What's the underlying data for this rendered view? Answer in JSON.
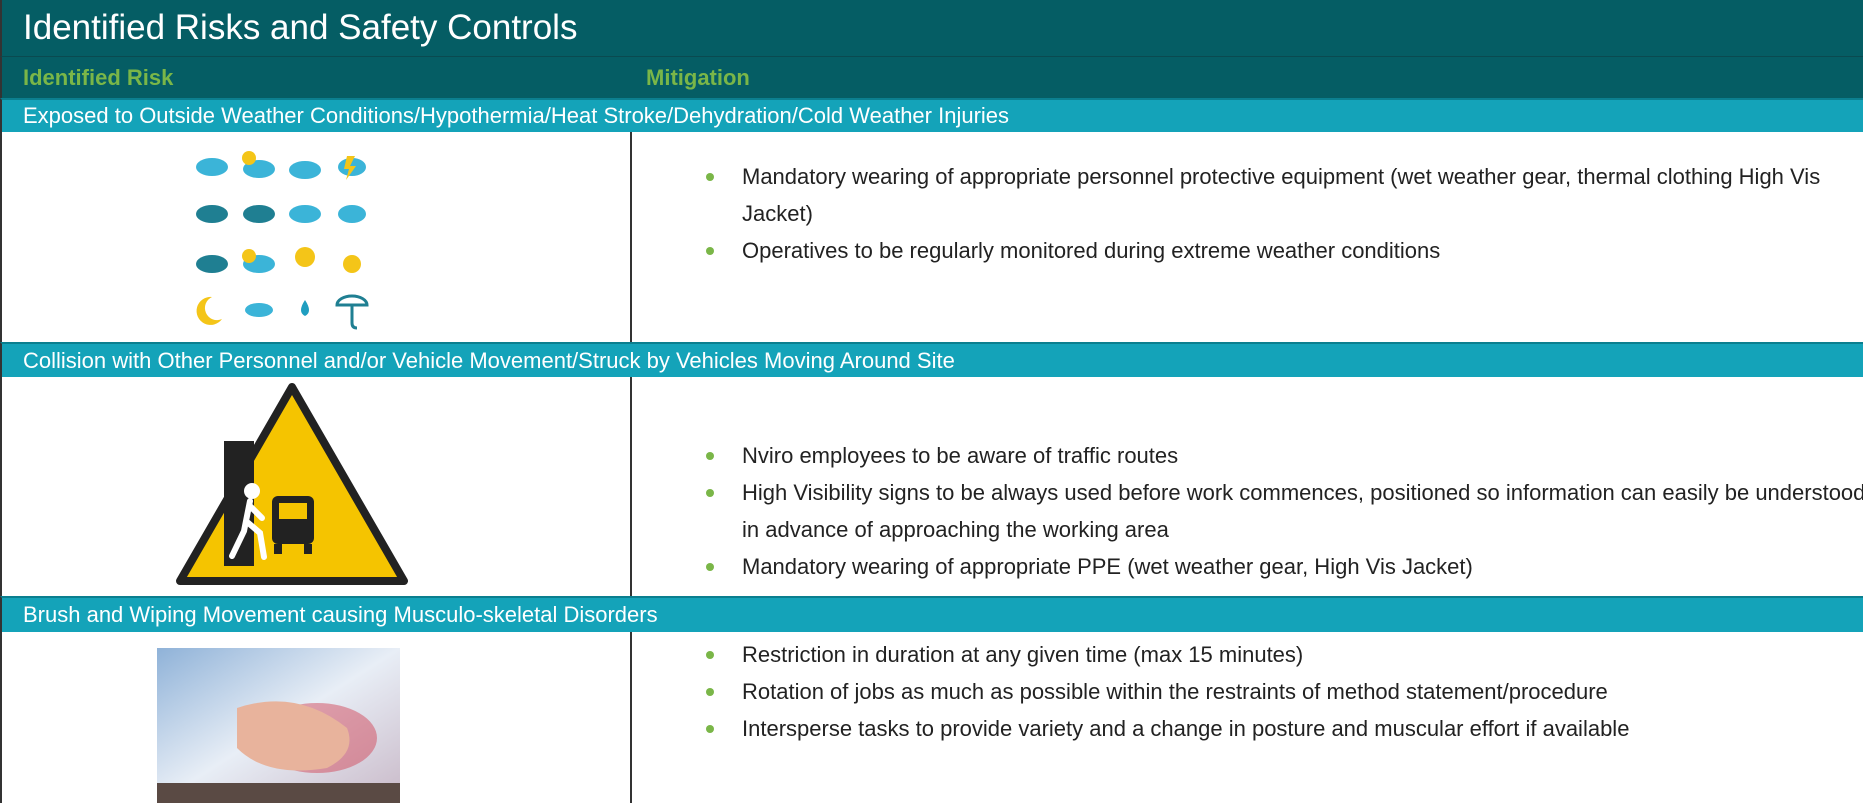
{
  "header": {
    "title": "Identified Risks and Safety Controls",
    "col_risk": "Identified Risk",
    "col_mitigation": "Mitigation"
  },
  "sections": [
    {
      "risk": "Exposed to Outside Weather Conditions/Hypothermia/Heat Stroke/Dehydration/Cold Weather Injuries",
      "mitigations": [
        "Mandatory wearing of appropriate personnel protective equipment (wet weather gear, thermal clothing High Vis Jacket)",
        "Operatives to be regularly monitored during extreme weather conditions"
      ]
    },
    {
      "risk": "Collision with Other Personnel and/or Vehicle Movement/Struck by Vehicles Moving Around Site",
      "mitigations": [
        "Nviro employees to be aware of traffic routes",
        "High Visibility signs to be always used before work commences, positioned so information can easily be understood in advance of approaching the working area",
        "Mandatory wearing of appropriate PPE (wet weather gear, High Vis Jacket)"
      ]
    },
    {
      "risk": "Brush and Wiping Movement causing Musculo-skeletal Disorders",
      "mitigations": [
        "Restriction in duration at any given time (max 15 minutes)",
        "Rotation of jobs as much as possible within the restraints of method statement/procedure",
        "Intersperse tasks to provide variety and a change in posture and muscular effort if available"
      ]
    }
  ]
}
